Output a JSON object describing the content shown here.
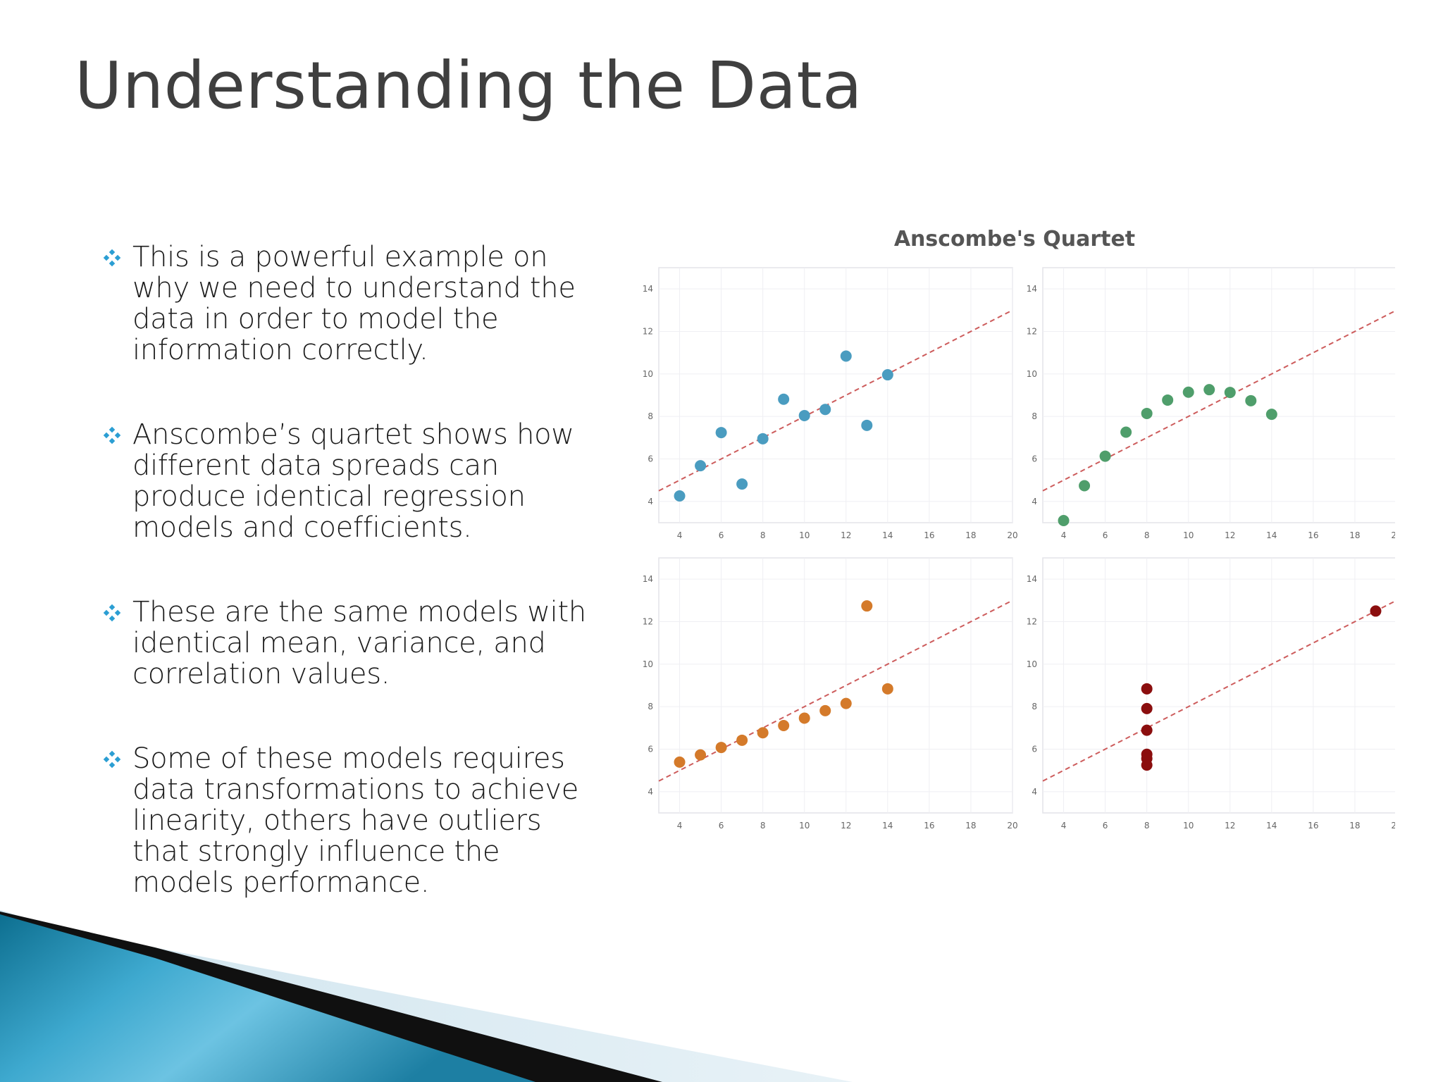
{
  "slide": {
    "title": "Understanding the Data",
    "bullets": [
      "This is a powerful example on why we need to understand the data in order to model the information correctly.",
      "Anscombe’s quartet shows how different data spreads can produce identical regression models and coefficients.",
      "These are the same models with identical mean, variance, and correlation values.",
      "Some of these models requires data transformations to achieve linearity, others have outliers that strongly influence the models performance."
    ],
    "bullet_icon": "diamond-cluster-icon",
    "bullet_color": "#2b9ed3"
  },
  "chart_data": {
    "type": "scatter",
    "title": "Anscombe's Quartet",
    "layout": "2x2 grid",
    "grid": true,
    "legend": "none",
    "xlim": [
      3,
      20
    ],
    "ylim": [
      3,
      15
    ],
    "x_ticks": [
      4,
      6,
      8,
      10,
      12,
      14,
      16,
      18,
      20
    ],
    "y_ticks": [
      4,
      6,
      8,
      10,
      12,
      14
    ],
    "regression_line": {
      "intercept": 3.0,
      "slope": 0.5,
      "style": "dashed",
      "color": "#cd5c5c"
    },
    "panels": [
      {
        "color": "#4a9cc0",
        "points": [
          [
            4,
            4.26
          ],
          [
            5,
            5.68
          ],
          [
            6,
            7.24
          ],
          [
            7,
            4.82
          ],
          [
            8,
            6.95
          ],
          [
            9,
            8.81
          ],
          [
            10,
            8.04
          ],
          [
            11,
            8.33
          ],
          [
            12,
            10.84
          ],
          [
            13,
            7.58
          ],
          [
            14,
            9.96
          ]
        ]
      },
      {
        "color": "#4f9e6b",
        "points": [
          [
            4,
            3.1
          ],
          [
            5,
            4.74
          ],
          [
            6,
            6.13
          ],
          [
            7,
            7.26
          ],
          [
            8,
            8.14
          ],
          [
            9,
            8.77
          ],
          [
            10,
            9.14
          ],
          [
            11,
            9.26
          ],
          [
            12,
            9.13
          ],
          [
            13,
            8.74
          ],
          [
            14,
            8.1
          ]
        ]
      },
      {
        "color": "#d47a2a",
        "points": [
          [
            4,
            5.39
          ],
          [
            5,
            5.73
          ],
          [
            6,
            6.08
          ],
          [
            7,
            6.42
          ],
          [
            8,
            6.77
          ],
          [
            9,
            7.11
          ],
          [
            10,
            7.46
          ],
          [
            11,
            7.81
          ],
          [
            12,
            8.15
          ],
          [
            13,
            12.74
          ],
          [
            14,
            8.84
          ]
        ]
      },
      {
        "color": "#8b0e0e",
        "points": [
          [
            8,
            8.84
          ],
          [
            8,
            7.91
          ],
          [
            8,
            6.89
          ],
          [
            8,
            5.76
          ],
          [
            8,
            5.56
          ],
          [
            8,
            5.25
          ],
          [
            19,
            12.5
          ]
        ]
      }
    ]
  }
}
